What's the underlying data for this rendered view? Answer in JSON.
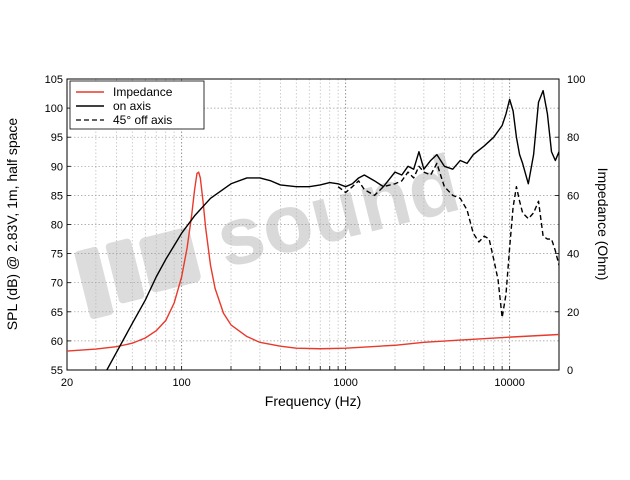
{
  "chart_data": {
    "type": "line",
    "xlabel": "Frequency (Hz)",
    "ylabel": "SPL (dB) @ 2.83V, 1m, half space",
    "y2label": "Impedance (Ohm)",
    "xscale": "log",
    "xlim": [
      20,
      20000
    ],
    "ylim": [
      55,
      105
    ],
    "y2lim": [
      0,
      100
    ],
    "x_tick_labels": [
      "20",
      "100",
      "1000",
      "10000"
    ],
    "x_ticks": [
      20,
      100,
      1000,
      10000
    ],
    "y_ticks": [
      55,
      60,
      65,
      70,
      75,
      80,
      85,
      90,
      95,
      100,
      105
    ],
    "y2_ticks": [
      0,
      20,
      40,
      60,
      80,
      100
    ],
    "grid": true,
    "legend_position": "top-left",
    "watermark": "sound",
    "colors": {
      "impedance": "#e8392b",
      "on_axis": "#000000",
      "off_axis": "#000000"
    },
    "series": [
      {
        "name": "Impedance",
        "axis": "right",
        "style": "solid",
        "color": "#e8392b",
        "x": [
          20,
          30,
          40,
          50,
          60,
          70,
          80,
          90,
          100,
          108,
          115,
          120,
          124,
          127,
          130,
          135,
          140,
          150,
          160,
          180,
          200,
          250,
          300,
          400,
          500,
          700,
          1000,
          2000,
          3000,
          5000,
          10000,
          20000
        ],
        "y": [
          6.5,
          7.2,
          8.0,
          9.2,
          11.0,
          13.5,
          17.0,
          23.0,
          32.0,
          42.0,
          53.0,
          62.0,
          67.5,
          68.0,
          66.0,
          58.0,
          49.0,
          36.0,
          28.0,
          19.5,
          15.5,
          11.5,
          9.5,
          8.2,
          7.5,
          7.3,
          7.5,
          8.5,
          9.5,
          10.3,
          11.3,
          12.2
        ]
      },
      {
        "name": "on axis",
        "axis": "left",
        "style": "solid",
        "color": "#000000",
        "x": [
          35,
          40,
          50,
          60,
          70,
          80,
          100,
          120,
          150,
          200,
          250,
          300,
          350,
          400,
          500,
          600,
          700,
          800,
          900,
          1000,
          1100,
          1200,
          1300,
          1500,
          1700,
          2000,
          2200,
          2400,
          2600,
          2800,
          3000,
          3300,
          3600,
          4000,
          4500,
          5000,
          5500,
          6000,
          7000,
          8000,
          9000,
          9500,
          10000,
          10500,
          11000,
          11500,
          12000,
          13000,
          14000,
          15000,
          16000,
          17000,
          18000,
          19000,
          20000
        ],
        "y": [
          55,
          58,
          63,
          67,
          71,
          74,
          78.5,
          81.5,
          84.5,
          87,
          88,
          88,
          87.5,
          86.8,
          86.5,
          86.5,
          86.8,
          87.2,
          87.0,
          86.5,
          87.0,
          88.0,
          88.5,
          87.5,
          86.5,
          89.0,
          88.5,
          90.0,
          89.5,
          92.5,
          89.5,
          91.0,
          92.0,
          90.0,
          89.5,
          91.0,
          90.5,
          92.0,
          93.5,
          95.0,
          97.0,
          99.0,
          101.5,
          99.5,
          95.0,
          92.0,
          90.5,
          87.0,
          92.0,
          101.0,
          103.0,
          99.0,
          92.5,
          91.0,
          92.5
        ]
      },
      {
        "name": "45° off axis",
        "axis": "left",
        "style": "dashed",
        "color": "#000000",
        "x": [
          900,
          1000,
          1100,
          1200,
          1300,
          1500,
          1700,
          2000,
          2200,
          2400,
          2600,
          2800,
          3000,
          3300,
          3600,
          4000,
          4500,
          5000,
          5500,
          6000,
          6500,
          7000,
          7500,
          8000,
          8500,
          9000,
          9500,
          10000,
          10500,
          11000,
          11500,
          12000,
          13000,
          14000,
          15000,
          16000,
          17000,
          18000,
          19000,
          20000
        ],
        "y": [
          86.5,
          85.5,
          86.5,
          87.5,
          86.0,
          85.0,
          86.5,
          87.0,
          87.5,
          89.0,
          88.0,
          90.0,
          89.0,
          88.5,
          90.5,
          86.5,
          85.0,
          84.5,
          82.5,
          78.5,
          77.0,
          78.0,
          77.5,
          74.0,
          70.5,
          64.0,
          68.0,
          76.0,
          83.0,
          86.5,
          84.0,
          82.0,
          81.0,
          82.0,
          84.0,
          78.0,
          77.5,
          77.5,
          75.5,
          73.0
        ]
      }
    ]
  }
}
